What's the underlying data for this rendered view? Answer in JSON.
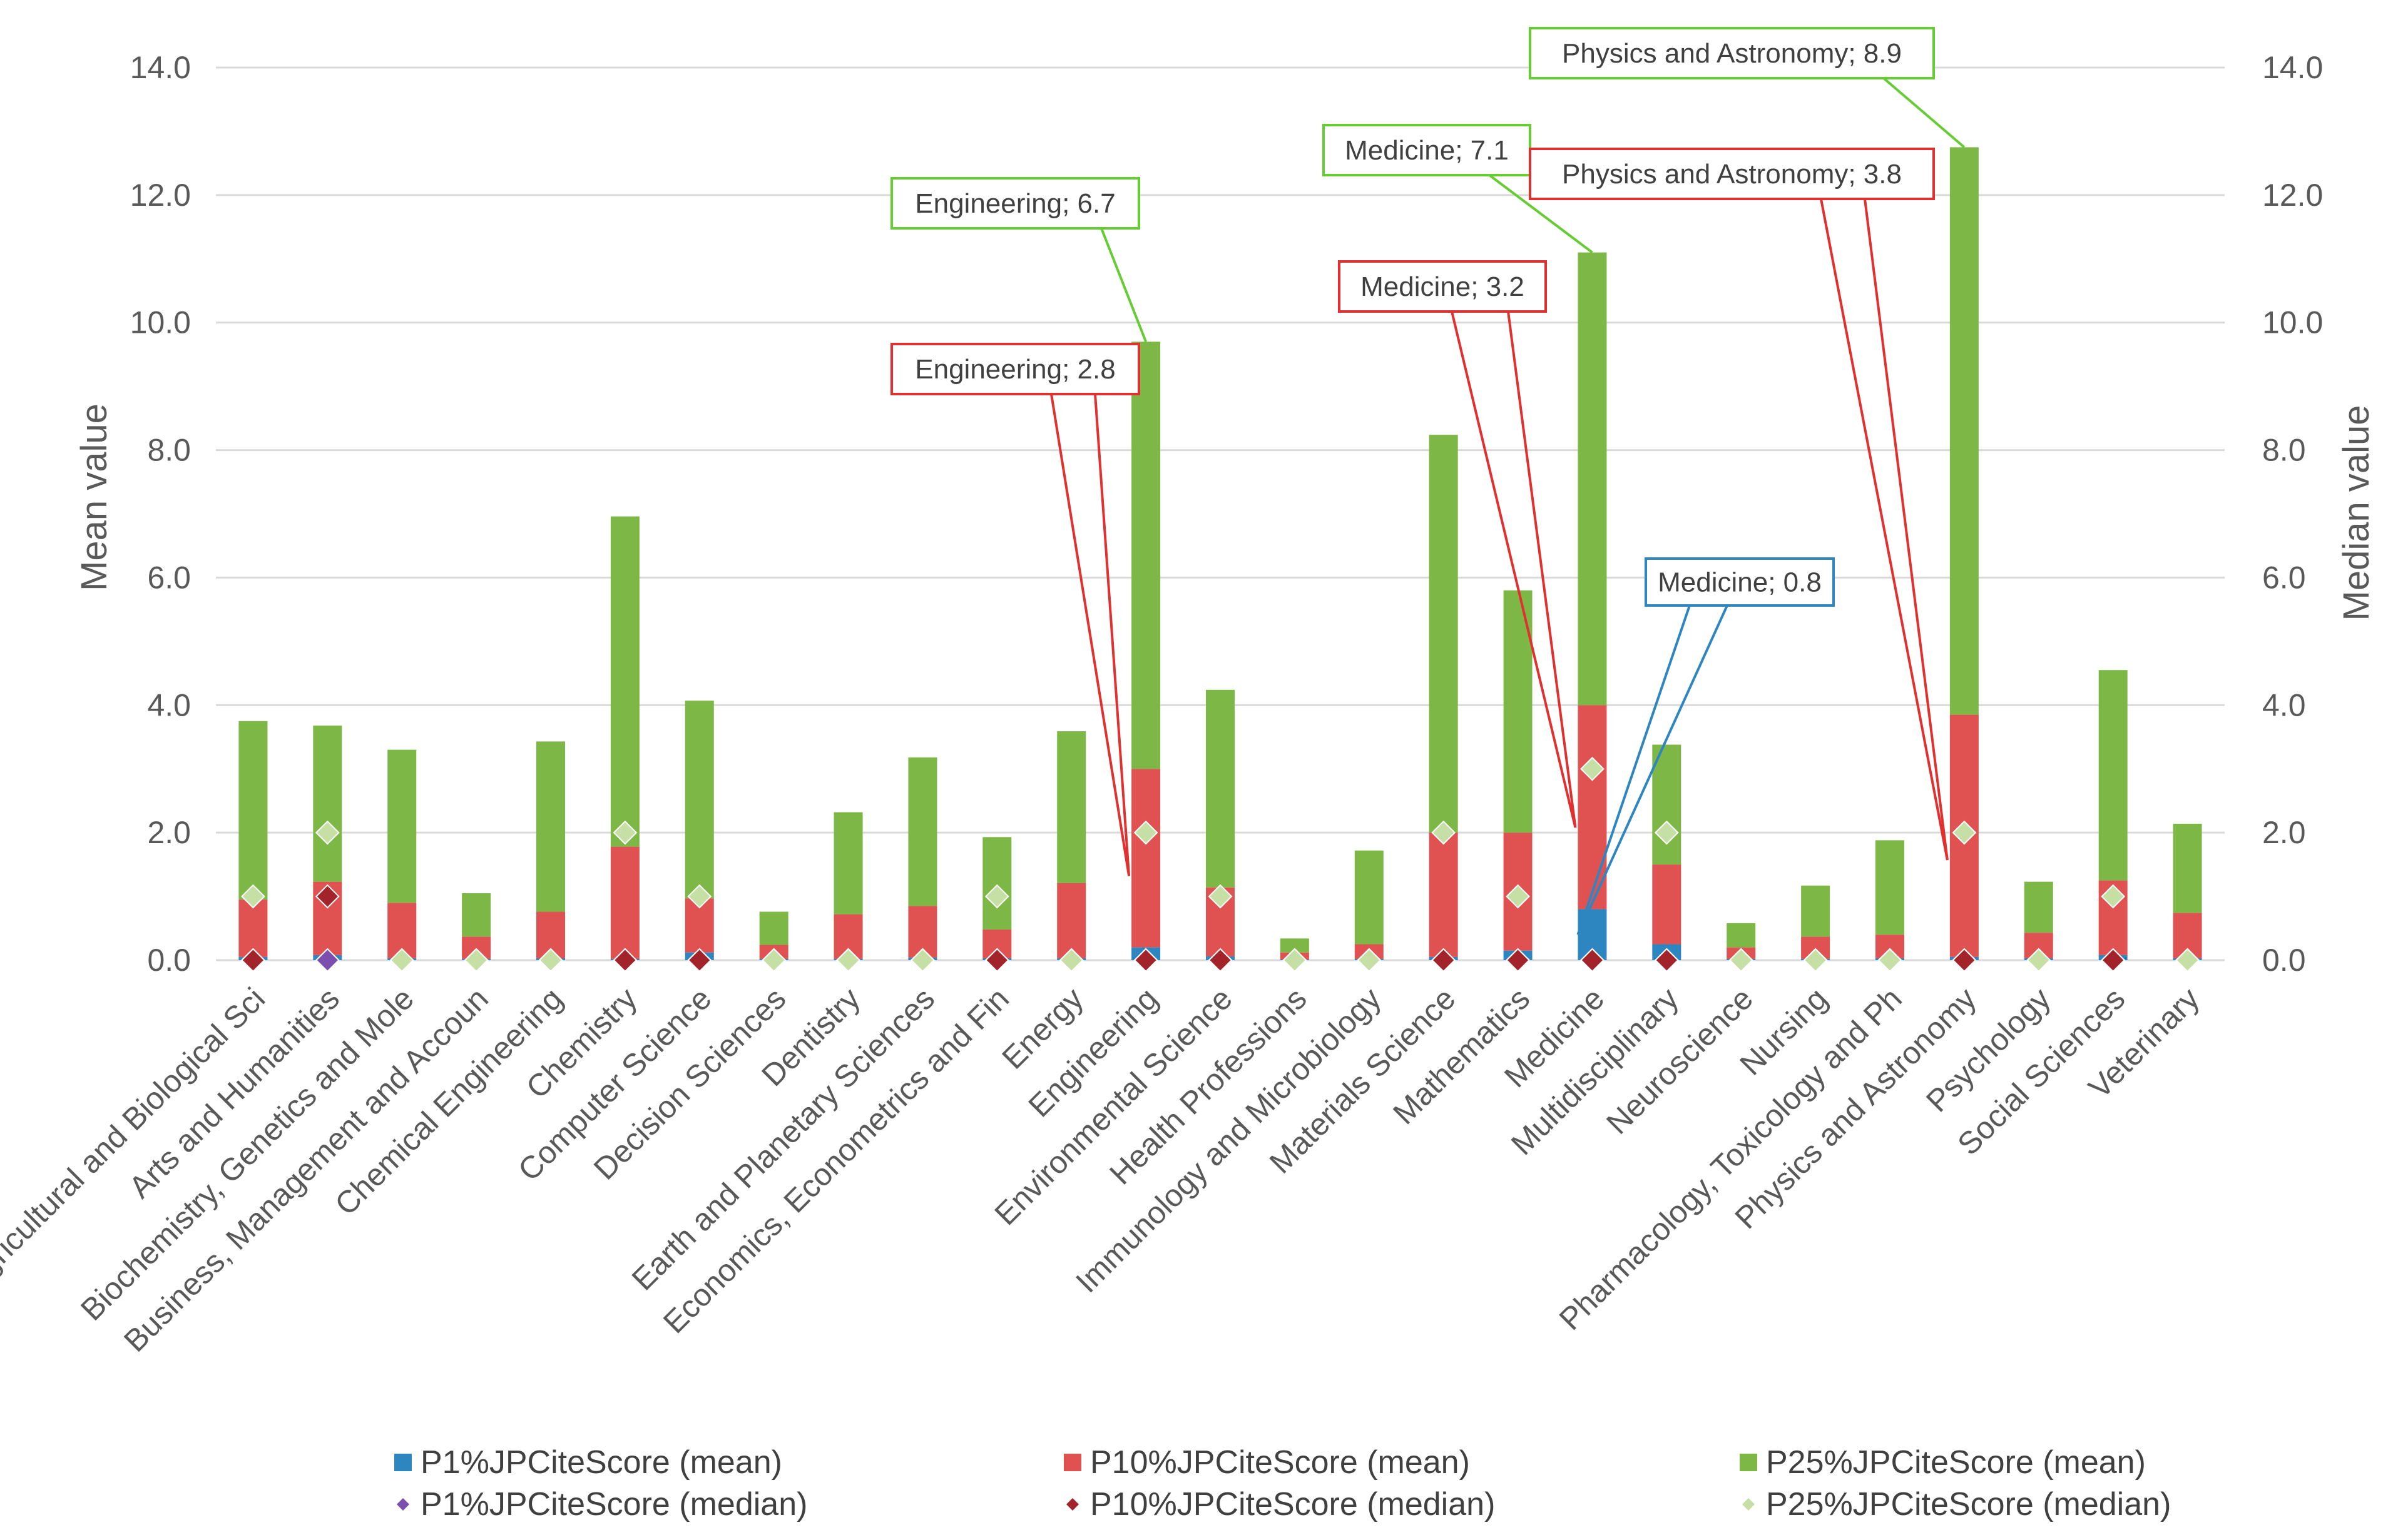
{
  "chart_data": {
    "type": "bar",
    "stacked": true,
    "y_left_label": "Mean value",
    "y_right_label": "Median value",
    "ylim": [
      0,
      14
    ],
    "yticks": [
      "0.0",
      "2.0",
      "4.0",
      "6.0",
      "8.0",
      "10.0",
      "12.0",
      "14.0"
    ],
    "categories": [
      "Agricultural and Biological Sci",
      "Arts and Humanities",
      "Biochemistry, Genetics and Mole",
      "Business, Management and Accoun",
      "Chemical Engineering",
      "Chemistry",
      "Computer Science",
      "Decision Sciences",
      "Dentistry",
      "Earth and Planetary Sciences",
      "Economics, Econometrics and Fin",
      "Energy",
      "Engineering",
      "Environmental Science",
      "Health Professions",
      "Immunology and Microbiology",
      "Materials Science",
      "Mathematics",
      "Medicine",
      "Multidisciplinary",
      "Neuroscience",
      "Nursing",
      "Pharmacology, Toxicology and Ph",
      "Physics and Astronomy",
      "Psychology",
      "Social Sciences",
      "Veterinary"
    ],
    "series": [
      {
        "name": "P1%JPCiteScore (mean)",
        "kind": "bar",
        "color": "#2E86C1",
        "values": [
          0.05,
          0.08,
          0.03,
          0.02,
          0.03,
          0.02,
          0.12,
          0.02,
          0.02,
          0.04,
          0.03,
          0.03,
          0.2,
          0.06,
          0.01,
          0.02,
          0.05,
          0.15,
          0.8,
          0.25,
          0.02,
          0.02,
          0.03,
          0.05,
          0.03,
          0.08,
          0.03
        ]
      },
      {
        "name": "P10%JPCiteScore (mean)",
        "kind": "bar",
        "color": "#E05252",
        "values": [
          0.9,
          1.15,
          0.87,
          0.35,
          0.73,
          1.76,
          0.85,
          0.22,
          0.7,
          0.81,
          0.45,
          1.18,
          2.8,
          1.08,
          0.11,
          0.23,
          1.95,
          1.85,
          3.2,
          1.25,
          0.18,
          0.35,
          0.37,
          3.8,
          0.4,
          1.17,
          0.71
        ]
      },
      {
        "name": "P25%JPCiteScore (mean)",
        "kind": "bar",
        "color": "#7DB847",
        "values": [
          2.8,
          2.45,
          2.4,
          0.68,
          2.67,
          5.18,
          3.1,
          0.52,
          1.6,
          2.33,
          1.45,
          2.38,
          6.7,
          3.1,
          0.22,
          1.47,
          6.24,
          3.8,
          7.1,
          1.88,
          0.38,
          0.8,
          1.48,
          8.9,
          0.8,
          3.3,
          1.4
        ]
      },
      {
        "name": "P1%JPCiteScore (median)",
        "kind": "marker",
        "color": "#7B4FB0",
        "values": [
          0,
          0,
          0,
          0,
          0,
          0,
          0,
          0,
          0,
          0,
          0,
          0,
          0,
          0,
          0,
          0,
          0,
          0,
          0,
          0,
          0,
          0,
          0,
          0,
          0,
          0,
          0
        ]
      },
      {
        "name": "P10%JPCiteScore (median)",
        "kind": "marker",
        "color": "#A3232B",
        "values": [
          0,
          1,
          0,
          0,
          0,
          0,
          0,
          0,
          0,
          0,
          0,
          0,
          0,
          0,
          0,
          0,
          0,
          0,
          0,
          0,
          0,
          0,
          0,
          0,
          0,
          0,
          0
        ]
      },
      {
        "name": "P25%JPCiteScore (median)",
        "kind": "marker",
        "color": "#C5DFA5",
        "values": [
          1,
          2,
          0,
          0,
          0,
          2,
          1,
          0,
          0,
          0,
          1,
          0,
          2,
          1,
          0,
          0,
          2,
          1,
          3,
          2,
          0,
          0,
          0,
          2,
          0,
          1,
          0
        ]
      }
    ],
    "annotations": [
      {
        "text": "Engineering; 6.7",
        "color": "#66CC33",
        "category": "Engineering",
        "series": "P25%JPCiteScore (mean)"
      },
      {
        "text": "Engineering; 2.8",
        "color": "#E03030",
        "category": "Engineering",
        "series": "P10%JPCiteScore (mean)"
      },
      {
        "text": "Medicine; 7.1",
        "color": "#66CC33",
        "category": "Medicine",
        "series": "P25%JPCiteScore (mean)"
      },
      {
        "text": "Medicine; 3.2",
        "color": "#E03030",
        "category": "Medicine",
        "series": "P10%JPCiteScore (mean)"
      },
      {
        "text": "Medicine; 0.8",
        "color": "#2E86C1",
        "category": "Medicine",
        "series": "P1%JPCiteScore (mean)"
      },
      {
        "text": "Physics and Astronomy; 8.9",
        "color": "#66CC33",
        "category": "Physics and Astronomy",
        "series": "P25%JPCiteScore (mean)"
      },
      {
        "text": "Physics and Astronomy; 3.8",
        "color": "#E03030",
        "category": "Physics and Astronomy",
        "series": "P10%JPCiteScore (mean)"
      }
    ],
    "legend_position": "bottom"
  }
}
